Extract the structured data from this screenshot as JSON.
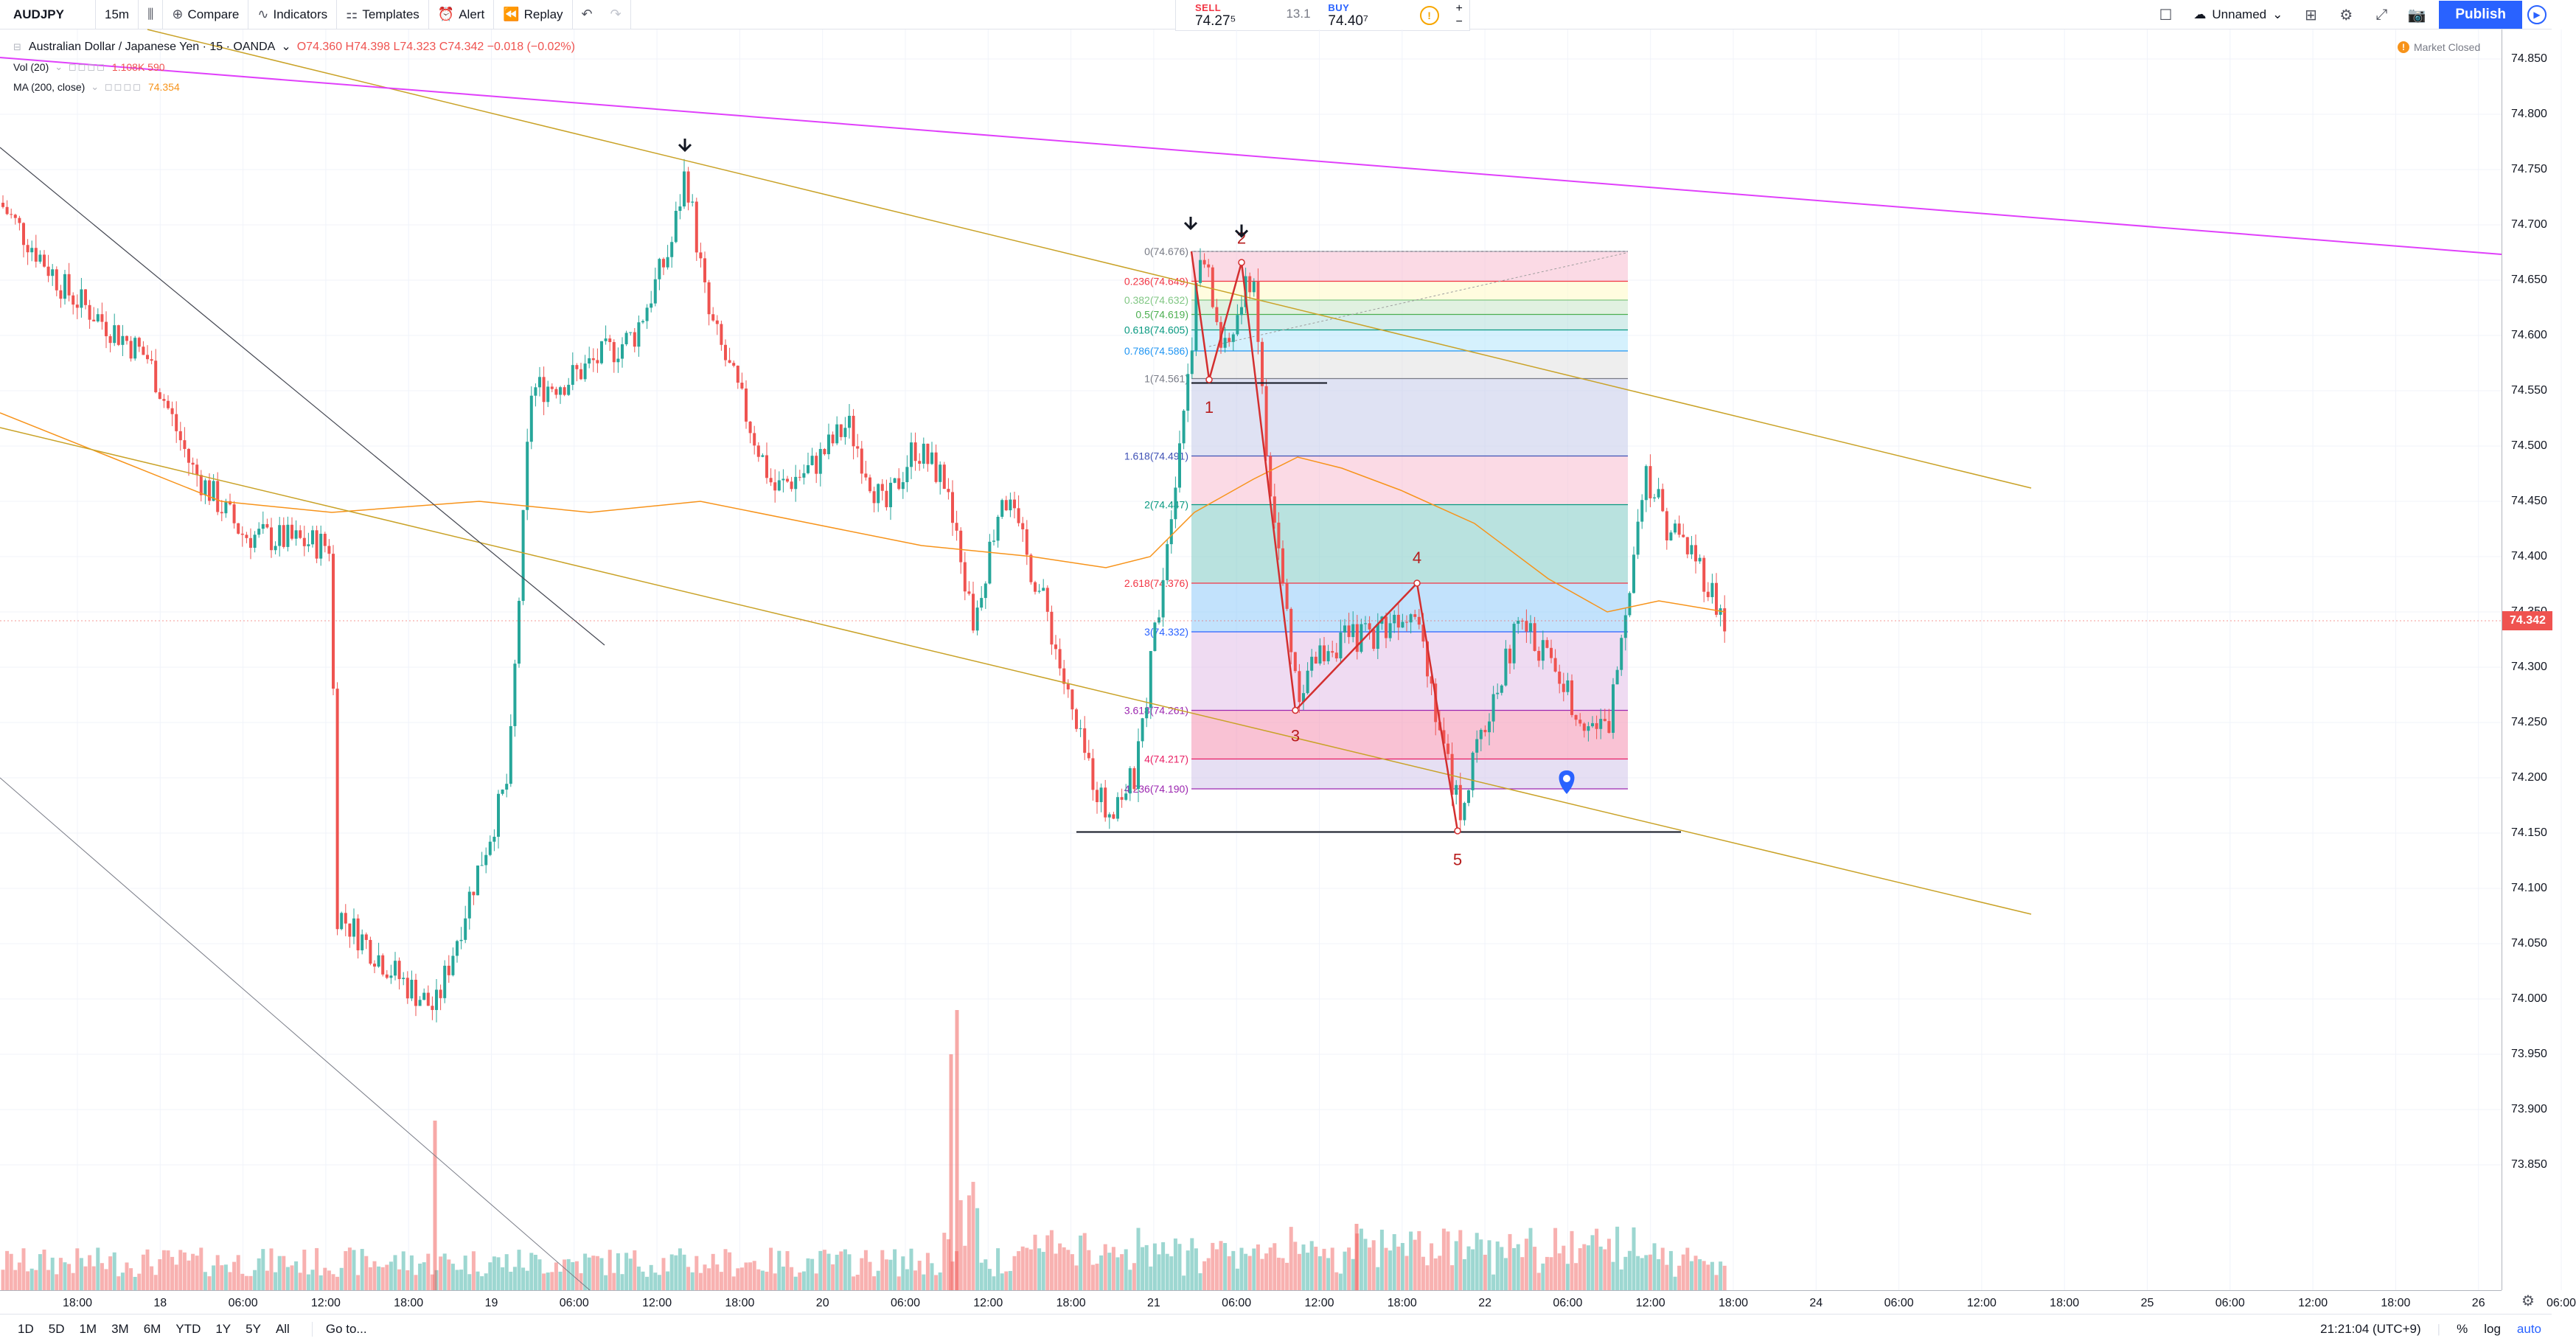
{
  "toolbar": {
    "symbol": "AUDJPY",
    "interval": "15m",
    "compare": "Compare",
    "indicators": "Indicators",
    "templates": "Templates",
    "alert": "Alert",
    "replay": "Replay",
    "layout_name": "Unnamed",
    "publish": "Publish"
  },
  "trade": {
    "sell_label": "SELL",
    "sell_price": "74.27⁵",
    "spread": "13.1",
    "buy_label": "BUY",
    "buy_price": "74.40⁷"
  },
  "legend": {
    "title": "Australian Dollar / Japanese Yen · 15 · OANDA",
    "ohlc": "O74.360  H74.398  L74.323  C74.342  −0.018 (−0.02%)",
    "vol_label": "Vol (20)",
    "vol_value": "1.108K  590",
    "ma_label": "MA (200, close)",
    "ma_value": "74.354"
  },
  "market_status": "Market Closed",
  "price_axis": {
    "ticks": [
      "74.850",
      "74.800",
      "74.750",
      "74.700",
      "74.650",
      "74.600",
      "74.550",
      "74.500",
      "74.450",
      "74.400",
      "74.350",
      "74.300",
      "74.250",
      "74.200",
      "74.150",
      "74.100",
      "74.050",
      "74.000",
      "73.950",
      "73.900",
      "73.850"
    ],
    "current": "74.342"
  },
  "time_axis": {
    "ticks": [
      "18:00",
      "18",
      "06:00",
      "12:00",
      "18:00",
      "19",
      "06:00",
      "12:00",
      "18:00",
      "20",
      "06:00",
      "12:00",
      "18:00",
      "21",
      "06:00",
      "12:00",
      "18:00",
      "22",
      "06:00",
      "12:00",
      "18:00",
      "24",
      "06:00",
      "12:00",
      "18:00",
      "25",
      "06:00",
      "12:00",
      "18:00",
      "26",
      "06:00"
    ]
  },
  "fib_levels": [
    {
      "label": "0(74.676)",
      "color": "#787b86"
    },
    {
      "label": "0.236(74.649)",
      "color": "#f23645"
    },
    {
      "label": "0.382(74.632)",
      "color": "#81c784"
    },
    {
      "label": "0.5(74.619)",
      "color": "#4caf50"
    },
    {
      "label": "0.618(74.605)",
      "color": "#089981"
    },
    {
      "label": "0.786(74.586)",
      "color": "#2196f3"
    },
    {
      "label": "1(74.561)",
      "color": "#787b86"
    },
    {
      "label": "1.618(74.491)",
      "color": "#3f51b5"
    },
    {
      "label": "2(74.447)",
      "color": "#089981"
    },
    {
      "label": "2.618(74.376)",
      "color": "#f23645"
    },
    {
      "label": "3(74.332)",
      "color": "#2962ff"
    },
    {
      "label": "3.618(74.261)",
      "color": "#9c27b0"
    },
    {
      "label": "4(74.217)",
      "color": "#e91e63"
    },
    {
      "label": "4.236(74.190)",
      "color": "#9c27b0"
    }
  ],
  "wave_labels": [
    "1",
    "2",
    "3",
    "4",
    "5"
  ],
  "bottom": {
    "ranges": [
      "1D",
      "5D",
      "1M",
      "3M",
      "6M",
      "YTD",
      "1Y",
      "5Y",
      "All"
    ],
    "goto": "Go to...",
    "clock": "21:21:04 (UTC+9)",
    "percent": "%",
    "log": "log",
    "auto": "auto"
  },
  "colors": {
    "up": "#26a69a",
    "down": "#ef5350",
    "ma": "#f7931a",
    "trendline": "#c9a227",
    "magenta_line": "#e040fb",
    "wave": "#d32f2f"
  }
}
